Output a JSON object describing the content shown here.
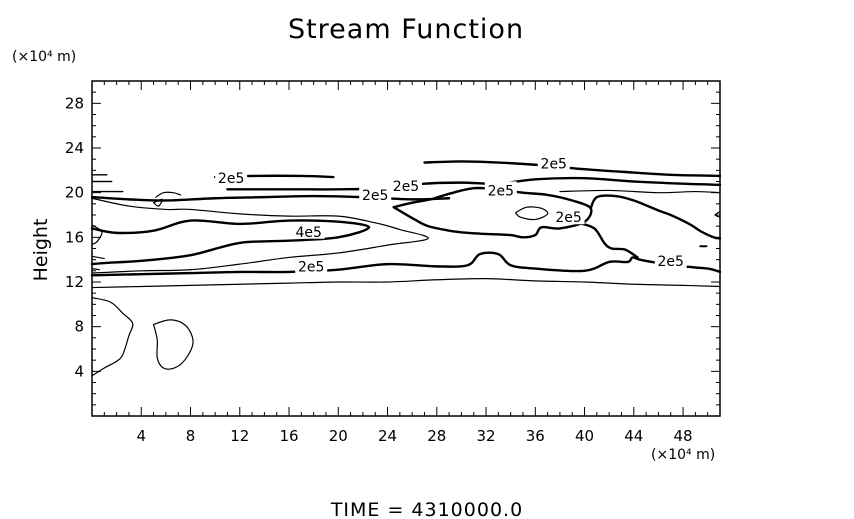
{
  "chart_data": {
    "type": "contour",
    "title": "Stream Function",
    "ylabel": "Height",
    "y_unit_label": "(×10⁴ m)",
    "x_unit_label": "(×10⁴ m)",
    "xlim": [
      0,
      51
    ],
    "ylim": [
      0,
      30
    ],
    "x_ticks": [
      4,
      8,
      12,
      16,
      20,
      24,
      28,
      32,
      36,
      40,
      44,
      48
    ],
    "y_ticks": [
      4,
      8,
      12,
      16,
      20,
      24,
      28
    ],
    "footer": "TIME  =  4310000.0",
    "contour_labels": [
      {
        "text": "2e5",
        "x": 11.3,
        "y": 21.3
      },
      {
        "text": "2e5",
        "x": 23.0,
        "y": 19.8
      },
      {
        "text": "2e5",
        "x": 25.5,
        "y": 20.6
      },
      {
        "text": "2e5",
        "x": 37.5,
        "y": 22.6
      },
      {
        "text": "2e5",
        "x": 33.2,
        "y": 20.2
      },
      {
        "text": "2e5",
        "x": 38.7,
        "y": 17.8
      },
      {
        "text": "4e5",
        "x": 17.6,
        "y": 16.5
      },
      {
        "text": "2e5",
        "x": 17.8,
        "y": 13.4
      },
      {
        "text": "2e5",
        "x": 47.0,
        "y": 13.9
      }
    ],
    "contours": [
      {
        "width": 2.4,
        "points": [
          [
            10,
            21.4
          ],
          [
            13,
            21.5
          ],
          [
            17,
            21.5
          ],
          [
            19.6,
            21.4
          ]
        ]
      },
      {
        "width": 2.4,
        "points": [
          [
            27,
            22.7
          ],
          [
            30,
            22.8
          ],
          [
            33,
            22.7
          ],
          [
            36,
            22.5
          ],
          [
            40,
            22.1
          ],
          [
            44,
            21.8
          ],
          [
            47,
            21.6
          ],
          [
            51,
            21.5
          ]
        ]
      },
      {
        "width": 2.4,
        "points": [
          [
            11,
            20.3
          ],
          [
            16,
            20.3
          ],
          [
            20,
            20.3
          ],
          [
            24,
            20.4
          ],
          [
            27,
            20.8
          ],
          [
            30,
            20.9
          ],
          [
            33,
            20.8
          ],
          [
            36,
            21.2
          ],
          [
            40,
            21.3
          ],
          [
            44,
            21.0
          ],
          [
            48,
            20.8
          ],
          [
            51,
            20.7
          ]
        ]
      },
      {
        "width": 1.4,
        "points": [
          [
            0,
            21.0
          ],
          [
            1.6,
            21.0
          ]
        ]
      },
      {
        "width": 1.4,
        "points": [
          [
            0,
            21.6
          ],
          [
            1.2,
            21.6
          ]
        ]
      },
      {
        "width": 1.4,
        "points": [
          [
            0,
            20.1
          ],
          [
            2.5,
            20.1
          ]
        ]
      },
      {
        "width": 2.4,
        "points": [
          [
            0,
            19.6
          ],
          [
            3,
            19.4
          ],
          [
            6,
            19.3
          ],
          [
            10,
            19.5
          ],
          [
            14,
            19.6
          ],
          [
            18,
            19.7
          ],
          [
            22,
            19.6
          ],
          [
            26,
            19.4
          ],
          [
            29,
            19.5
          ]
        ]
      },
      {
        "width": 1.2,
        "points": [
          [
            38,
            20.1
          ],
          [
            42,
            20.2
          ],
          [
            46,
            20.0
          ],
          [
            49,
            20.1
          ],
          [
            51,
            20.0
          ]
        ]
      },
      {
        "width": 2.4,
        "points": [
          [
            0,
            16.8
          ],
          [
            2,
            16.4
          ],
          [
            5,
            16.6
          ],
          [
            8,
            17.5
          ],
          [
            12,
            17.2
          ],
          [
            16,
            17.5
          ],
          [
            20,
            17.4
          ],
          [
            22.5,
            16.9
          ],
          [
            20,
            16.0
          ],
          [
            16,
            15.7
          ],
          [
            12,
            15.5
          ],
          [
            8,
            14.4
          ],
          [
            4,
            13.9
          ],
          [
            1,
            13.7
          ],
          [
            0,
            13.6
          ]
        ]
      },
      {
        "width": 1.2,
        "points": [
          [
            0,
            19.5
          ],
          [
            3,
            18.8
          ],
          [
            6,
            18.5
          ],
          [
            8,
            18.5
          ],
          [
            12,
            18.1
          ],
          [
            16,
            17.9
          ],
          [
            20,
            17.9
          ],
          [
            23,
            17.3
          ],
          [
            25,
            16.7
          ],
          [
            27.3,
            15.9
          ],
          [
            24,
            15.3
          ],
          [
            20,
            14.6
          ],
          [
            16,
            14.2
          ],
          [
            12,
            13.6
          ],
          [
            8,
            13.1
          ],
          [
            4,
            13.0
          ],
          [
            0,
            12.8
          ]
        ]
      },
      {
        "width": 2.4,
        "points": [
          [
            0,
            12.6
          ],
          [
            4,
            12.7
          ],
          [
            8,
            12.8
          ],
          [
            12,
            12.9
          ],
          [
            16,
            12.9
          ],
          [
            20,
            13.1
          ],
          [
            24,
            13.6
          ],
          [
            28,
            13.4
          ],
          [
            30.5,
            13.5
          ],
          [
            31.5,
            14.5
          ],
          [
            33,
            14.5
          ],
          [
            34,
            13.5
          ],
          [
            36,
            13.2
          ],
          [
            40,
            13.0
          ],
          [
            42,
            13.8
          ],
          [
            43.5,
            13.8
          ],
          [
            43.9,
            14.2
          ],
          [
            44.5,
            14.0
          ],
          [
            46,
            13.7
          ],
          [
            48,
            13.4
          ],
          [
            50,
            13.2
          ],
          [
            51,
            12.9
          ]
        ]
      },
      {
        "width": 2.4,
        "points": [
          [
            24.5,
            18.7
          ],
          [
            26,
            19.1
          ],
          [
            27.5,
            19.4
          ],
          [
            29,
            19.9
          ],
          [
            31,
            20.4
          ],
          [
            33,
            20.3
          ],
          [
            35,
            20.0
          ],
          [
            37,
            19.8
          ],
          [
            39,
            19.3
          ],
          [
            40.5,
            18.6
          ],
          [
            40,
            17.4
          ],
          [
            38,
            16.8
          ],
          [
            36.5,
            16.9
          ],
          [
            36,
            16.2
          ],
          [
            35,
            16.0
          ],
          [
            34,
            16.2
          ],
          [
            32,
            16.3
          ],
          [
            30.5,
            16.4
          ],
          [
            29,
            16.6
          ],
          [
            27.3,
            17.0
          ],
          [
            26.2,
            17.6
          ],
          [
            24.5,
            18.7
          ]
        ]
      },
      {
        "width": 1.2,
        "points": [
          [
            34.4,
            18.2
          ],
          [
            35.3,
            18.7
          ],
          [
            36.5,
            18.6
          ],
          [
            37.0,
            18.1
          ],
          [
            36.0,
            17.6
          ],
          [
            34.8,
            17.8
          ],
          [
            34.4,
            18.2
          ]
        ]
      },
      {
        "width": 2.4,
        "points": [
          [
            40.5,
            18.6
          ],
          [
            41,
            19.6
          ],
          [
            42.5,
            19.7
          ],
          [
            44,
            19.3
          ],
          [
            46,
            18.4
          ],
          [
            47,
            18.0
          ],
          [
            48.5,
            17.2
          ],
          [
            49.5,
            16.5
          ],
          [
            50.5,
            16.0
          ],
          [
            51,
            15.9
          ]
        ]
      },
      {
        "width": 2.4,
        "points": [
          [
            39.5,
            17.3
          ],
          [
            40.8,
            16.8
          ],
          [
            41.6,
            15.5
          ],
          [
            42.2,
            15.0
          ],
          [
            43.3,
            14.9
          ],
          [
            44.3,
            14.2
          ]
        ]
      },
      {
        "width": 1.2,
        "points": [
          [
            0,
            11.5
          ],
          [
            4,
            11.6
          ],
          [
            8,
            11.7
          ],
          [
            12,
            11.8
          ],
          [
            16,
            11.9
          ],
          [
            20,
            12.0
          ],
          [
            24,
            12.0
          ],
          [
            28,
            12.2
          ],
          [
            32,
            12.3
          ],
          [
            36,
            12.1
          ],
          [
            40,
            12.0
          ],
          [
            44,
            11.8
          ],
          [
            48,
            11.7
          ],
          [
            51,
            11.6
          ]
        ]
      },
      {
        "width": 1.2,
        "points": [
          [
            0,
            10.6
          ],
          [
            1.5,
            10.2
          ],
          [
            2.5,
            9.2
          ],
          [
            3.3,
            8.3
          ],
          [
            3.0,
            7.2
          ],
          [
            2.5,
            5.5
          ],
          [
            2.0,
            4.9
          ],
          [
            1.0,
            4.3
          ],
          [
            0,
            3.6
          ]
        ]
      },
      {
        "width": 1.2,
        "points": [
          [
            5.0,
            8.2
          ],
          [
            6.2,
            8.6
          ],
          [
            7.2,
            8.4
          ],
          [
            7.9,
            7.7
          ],
          [
            8.2,
            6.5
          ],
          [
            7.6,
            5.1
          ],
          [
            6.7,
            4.3
          ],
          [
            5.8,
            4.3
          ],
          [
            5.3,
            5.2
          ],
          [
            5.3,
            6.8
          ],
          [
            5.0,
            8.2
          ]
        ]
      },
      {
        "width": 1.2,
        "points": [
          [
            5.2,
            19.6
          ],
          [
            5.8,
            20.0
          ],
          [
            6.6,
            20.0
          ],
          [
            7.2,
            19.8
          ]
        ]
      },
      {
        "width": 1.2,
        "points": [
          [
            0,
            17.1
          ],
          [
            0.8,
            16.5
          ],
          [
            0.4,
            15.6
          ],
          [
            0,
            15.4
          ]
        ]
      },
      {
        "width": 1.2,
        "points": [
          [
            0,
            14.3
          ],
          [
            1.0,
            14.1
          ]
        ]
      },
      {
        "width": 1.2,
        "points": [
          [
            0,
            13.2
          ],
          [
            0.6,
            13.1
          ]
        ]
      },
      {
        "width": 1.2,
        "points": [
          [
            51,
            18.3
          ],
          [
            50.6,
            18.0
          ],
          [
            51,
            17.8
          ]
        ]
      },
      {
        "width": 2.0,
        "points": [
          [
            49.4,
            15.2
          ],
          [
            49.9,
            15.2
          ]
        ]
      },
      {
        "width": 1.2,
        "points": [
          [
            5.0,
            19.1
          ],
          [
            5.7,
            19.4
          ],
          [
            5.4,
            18.8
          ],
          [
            5.0,
            19.1
          ]
        ]
      }
    ]
  }
}
